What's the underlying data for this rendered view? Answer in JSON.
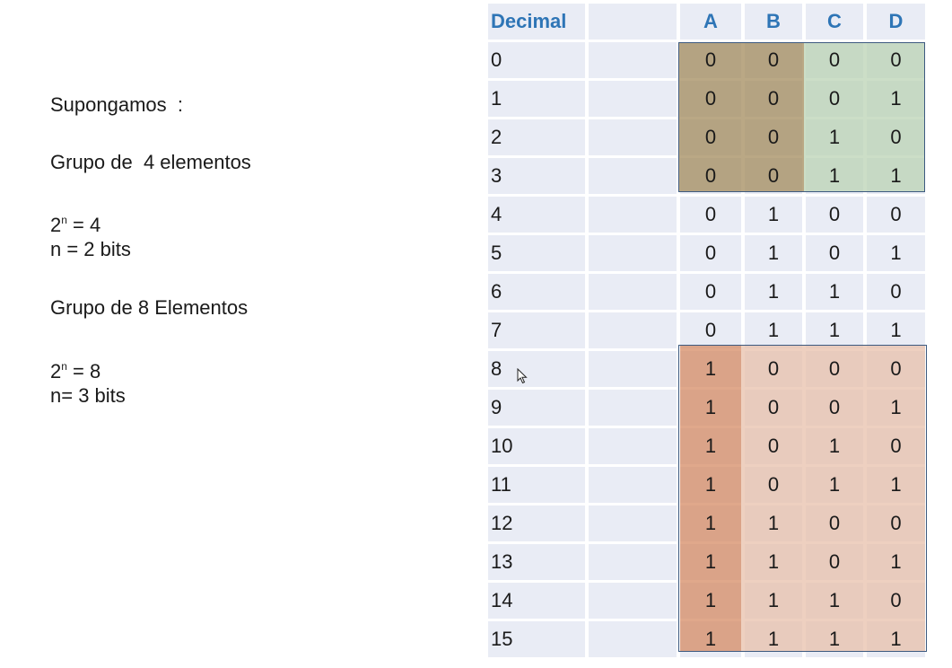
{
  "notes": {
    "line1": "Supongamos  :",
    "line2": "Grupo de  4 elementos",
    "line3_base": "2",
    "line3_exp": "n",
    "line3_rest": " = 4",
    "line4": "n = 2 bits",
    "line5": "Grupo de 8 Elementos",
    "line6_base": "2",
    "line6_exp": "n",
    "line6_rest": " = 8",
    "line7": "n= 3 bits"
  },
  "table": {
    "headers": [
      "Decimal",
      "",
      "A",
      "B",
      "C",
      "D"
    ],
    "rows": [
      {
        "dec": "0",
        "A": "0",
        "B": "0",
        "C": "0",
        "D": "0"
      },
      {
        "dec": "1",
        "A": "0",
        "B": "0",
        "C": "0",
        "D": "1"
      },
      {
        "dec": "2",
        "A": "0",
        "B": "0",
        "C": "1",
        "D": "0"
      },
      {
        "dec": "3",
        "A": "0",
        "B": "0",
        "C": "1",
        "D": "1"
      },
      {
        "dec": "4",
        "A": "0",
        "B": "1",
        "C": "0",
        "D": "0"
      },
      {
        "dec": "5",
        "A": "0",
        "B": "1",
        "C": "0",
        "D": "1"
      },
      {
        "dec": "6",
        "A": "0",
        "B": "1",
        "C": "1",
        "D": "0"
      },
      {
        "dec": "7",
        "A": "0",
        "B": "1",
        "C": "1",
        "D": "1"
      },
      {
        "dec": "8",
        "A": "1",
        "B": "0",
        "C": "0",
        "D": "0"
      },
      {
        "dec": "9",
        "A": "1",
        "B": "0",
        "C": "0",
        "D": "1"
      },
      {
        "dec": "10",
        "A": "1",
        "B": "0",
        "C": "1",
        "D": "0"
      },
      {
        "dec": "11",
        "A": "1",
        "B": "0",
        "C": "1",
        "D": "1"
      },
      {
        "dec": "12",
        "A": "1",
        "B": "1",
        "C": "0",
        "D": "0"
      },
      {
        "dec": "13",
        "A": "1",
        "B": "1",
        "C": "0",
        "D": "1"
      },
      {
        "dec": "14",
        "A": "1",
        "B": "1",
        "C": "1",
        "D": "0"
      },
      {
        "dec": "15",
        "A": "1",
        "B": "1",
        "C": "1",
        "D": "1"
      }
    ]
  },
  "colors": {
    "header_text": "#2e75b6",
    "cell_bg": "#e9ecf5",
    "group1_ab": "#a08656",
    "group1_cd": "#b9d1b2",
    "group2_a": "#d4875e",
    "group2_bcd": "#e8bea8",
    "box_border": "#3d5a80"
  },
  "icons": {
    "cursor": "mouse-pointer-icon"
  }
}
